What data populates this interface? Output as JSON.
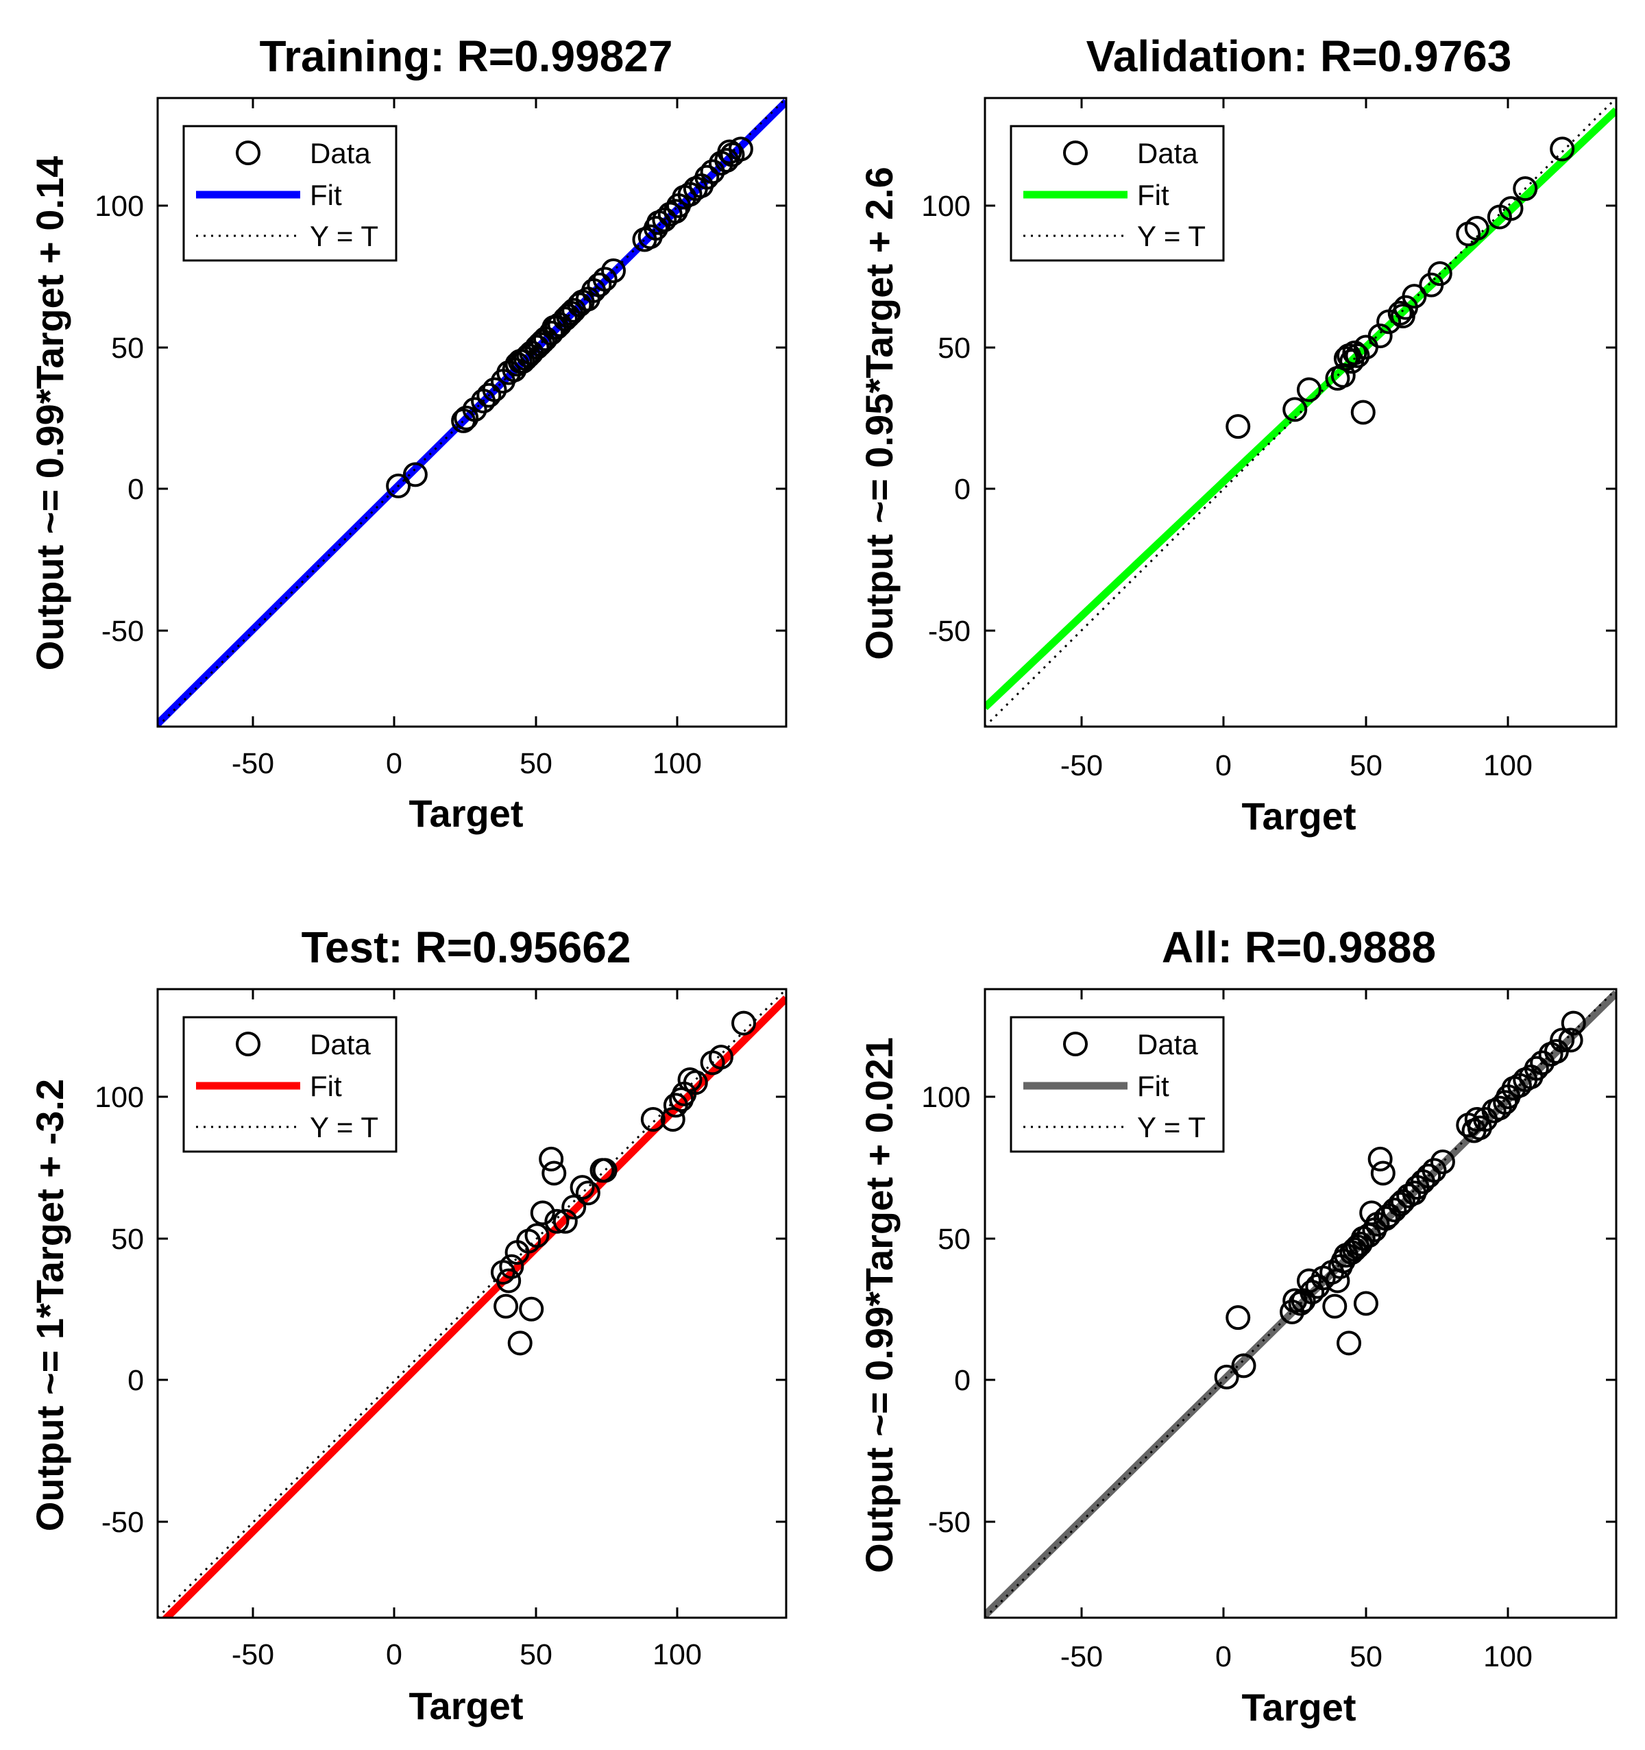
{
  "figure": {
    "background": "#ffffff"
  },
  "chart_data": [
    {
      "type": "scatter",
      "title": "Training: R=0.99827",
      "xlabel": "Target",
      "ylabel": "Output ~= 0.99*Target + 0.14",
      "xlim": [
        -84,
        138
      ],
      "ylim": [
        -84,
        138
      ],
      "xticks": [
        -50,
        0,
        50,
        100
      ],
      "yticks": [
        -50,
        0,
        50,
        100
      ],
      "fit": {
        "slope": 0.99,
        "intercept": 0.14,
        "color": "#0000ff"
      },
      "legend": {
        "position": "top-left",
        "entries": [
          "Data",
          "Fit",
          "Y = T"
        ]
      },
      "series": [
        {
          "name": "Data",
          "x": [
            1,
            7,
            24,
            25,
            28,
            31,
            33,
            35,
            38,
            40,
            42,
            43,
            44,
            45,
            46,
            47,
            48,
            50,
            51,
            52,
            53,
            55,
            56,
            57,
            58,
            60,
            61,
            62,
            63,
            65,
            66,
            68,
            70,
            72,
            74,
            77,
            88,
            90,
            92,
            93,
            95,
            97,
            99,
            100,
            102,
            104,
            106,
            108,
            110,
            112,
            115,
            117,
            118,
            119,
            122
          ],
          "y": [
            1,
            5,
            24,
            25,
            28,
            31,
            33,
            35,
            38,
            41,
            42,
            44,
            45,
            45,
            46,
            47,
            48,
            50,
            51,
            52,
            53,
            55,
            57,
            57,
            58,
            60,
            61,
            62,
            63,
            65,
            66,
            67,
            70,
            72,
            74,
            77,
            88,
            89,
            92,
            94,
            95,
            97,
            98,
            100,
            103,
            104,
            106,
            107,
            110,
            112,
            115,
            116,
            119,
            118,
            120
          ]
        }
      ]
    },
    {
      "type": "scatter",
      "title": "Validation: R=0.9763",
      "xlabel": "Target",
      "ylabel": "Output ~= 0.95*Target + 2.6",
      "xlim": [
        -84,
        138
      ],
      "ylim": [
        -84,
        138
      ],
      "xticks": [
        -50,
        0,
        50,
        100
      ],
      "yticks": [
        -50,
        0,
        50,
        100
      ],
      "fit": {
        "slope": 0.95,
        "intercept": 2.6,
        "color": "#00ff00"
      },
      "legend": {
        "position": "top-left",
        "entries": [
          "Data",
          "Fit",
          "Y = T"
        ]
      },
      "series": [
        {
          "name": "Data",
          "x": [
            5,
            25,
            30,
            40,
            42,
            43,
            44,
            45,
            46,
            47,
            49,
            50,
            55,
            58,
            62,
            63,
            64,
            67,
            73,
            76,
            86,
            89,
            97,
            101,
            106,
            119
          ],
          "y": [
            22,
            28,
            35,
            39,
            40,
            46,
            47,
            45,
            48,
            47,
            27,
            50,
            54,
            59,
            62,
            61,
            64,
            68,
            72,
            76,
            90,
            92,
            96,
            99,
            106,
            120
          ]
        }
      ]
    },
    {
      "type": "scatter",
      "title": "Test: R=0.95662",
      "xlabel": "Target",
      "ylabel": "Output ~= 1*Target + -3.2",
      "xlim": [
        -84,
        138
      ],
      "ylim": [
        -84,
        138
      ],
      "xticks": [
        -50,
        0,
        50,
        100
      ],
      "yticks": [
        -50,
        0,
        50,
        100
      ],
      "fit": {
        "slope": 1,
        "intercept": -3.2,
        "color": "#ff0000"
      },
      "legend": {
        "position": "top-left",
        "entries": [
          "Data",
          "Fit",
          "Y = T"
        ]
      },
      "series": [
        {
          "name": "Data",
          "x": [
            38,
            39,
            40,
            41,
            43,
            44,
            47,
            48,
            50,
            52,
            55,
            56,
            57,
            60,
            63,
            66,
            68,
            73,
            74,
            91,
            98,
            99,
            101,
            102,
            104,
            106,
            112,
            115,
            123
          ],
          "y": [
            38,
            26,
            35,
            40,
            45,
            13,
            49,
            25,
            51,
            59,
            78,
            73,
            56,
            56,
            61,
            68,
            66,
            74,
            74,
            92,
            92,
            97,
            99,
            101,
            106,
            105,
            112,
            114,
            126
          ]
        }
      ]
    },
    {
      "type": "scatter",
      "title": "All: R=0.9888",
      "xlabel": "Target",
      "ylabel": "Output ~= 0.99*Target + 0.021",
      "xlim": [
        -84,
        138
      ],
      "ylim": [
        -84,
        138
      ],
      "xticks": [
        -50,
        0,
        50,
        100
      ],
      "yticks": [
        -50,
        0,
        50,
        100
      ],
      "fit": {
        "slope": 0.99,
        "intercept": 0.021,
        "color": "#666666"
      },
      "legend": {
        "position": "top-left",
        "entries": [
          "Data",
          "Fit",
          "Y = T"
        ]
      },
      "series": [
        {
          "name": "Data",
          "x": [
            1,
            5,
            7,
            24,
            25,
            27,
            28,
            30,
            31,
            33,
            35,
            38,
            39,
            40,
            41,
            42,
            43,
            44,
            45,
            46,
            47,
            48,
            49,
            50,
            51,
            52,
            53,
            54,
            55,
            56,
            57,
            58,
            60,
            62,
            63,
            65,
            67,
            68,
            70,
            72,
            74,
            77,
            86,
            88,
            89,
            90,
            92,
            95,
            97,
            99,
            100,
            102,
            104,
            106,
            108,
            110,
            112,
            115,
            117,
            119,
            122,
            123
          ],
          "y": [
            1,
            22,
            5,
            24,
            28,
            27,
            28,
            35,
            31,
            33,
            36,
            38,
            26,
            35,
            40,
            42,
            44,
            13,
            45,
            46,
            47,
            48,
            50,
            27,
            51,
            59,
            53,
            55,
            78,
            73,
            57,
            58,
            60,
            62,
            63,
            65,
            66,
            68,
            70,
            72,
            74,
            77,
            90,
            88,
            92,
            89,
            92,
            95,
            96,
            98,
            100,
            103,
            104,
            106,
            107,
            110,
            112,
            115,
            116,
            120,
            120,
            126
          ]
        }
      ]
    }
  ]
}
